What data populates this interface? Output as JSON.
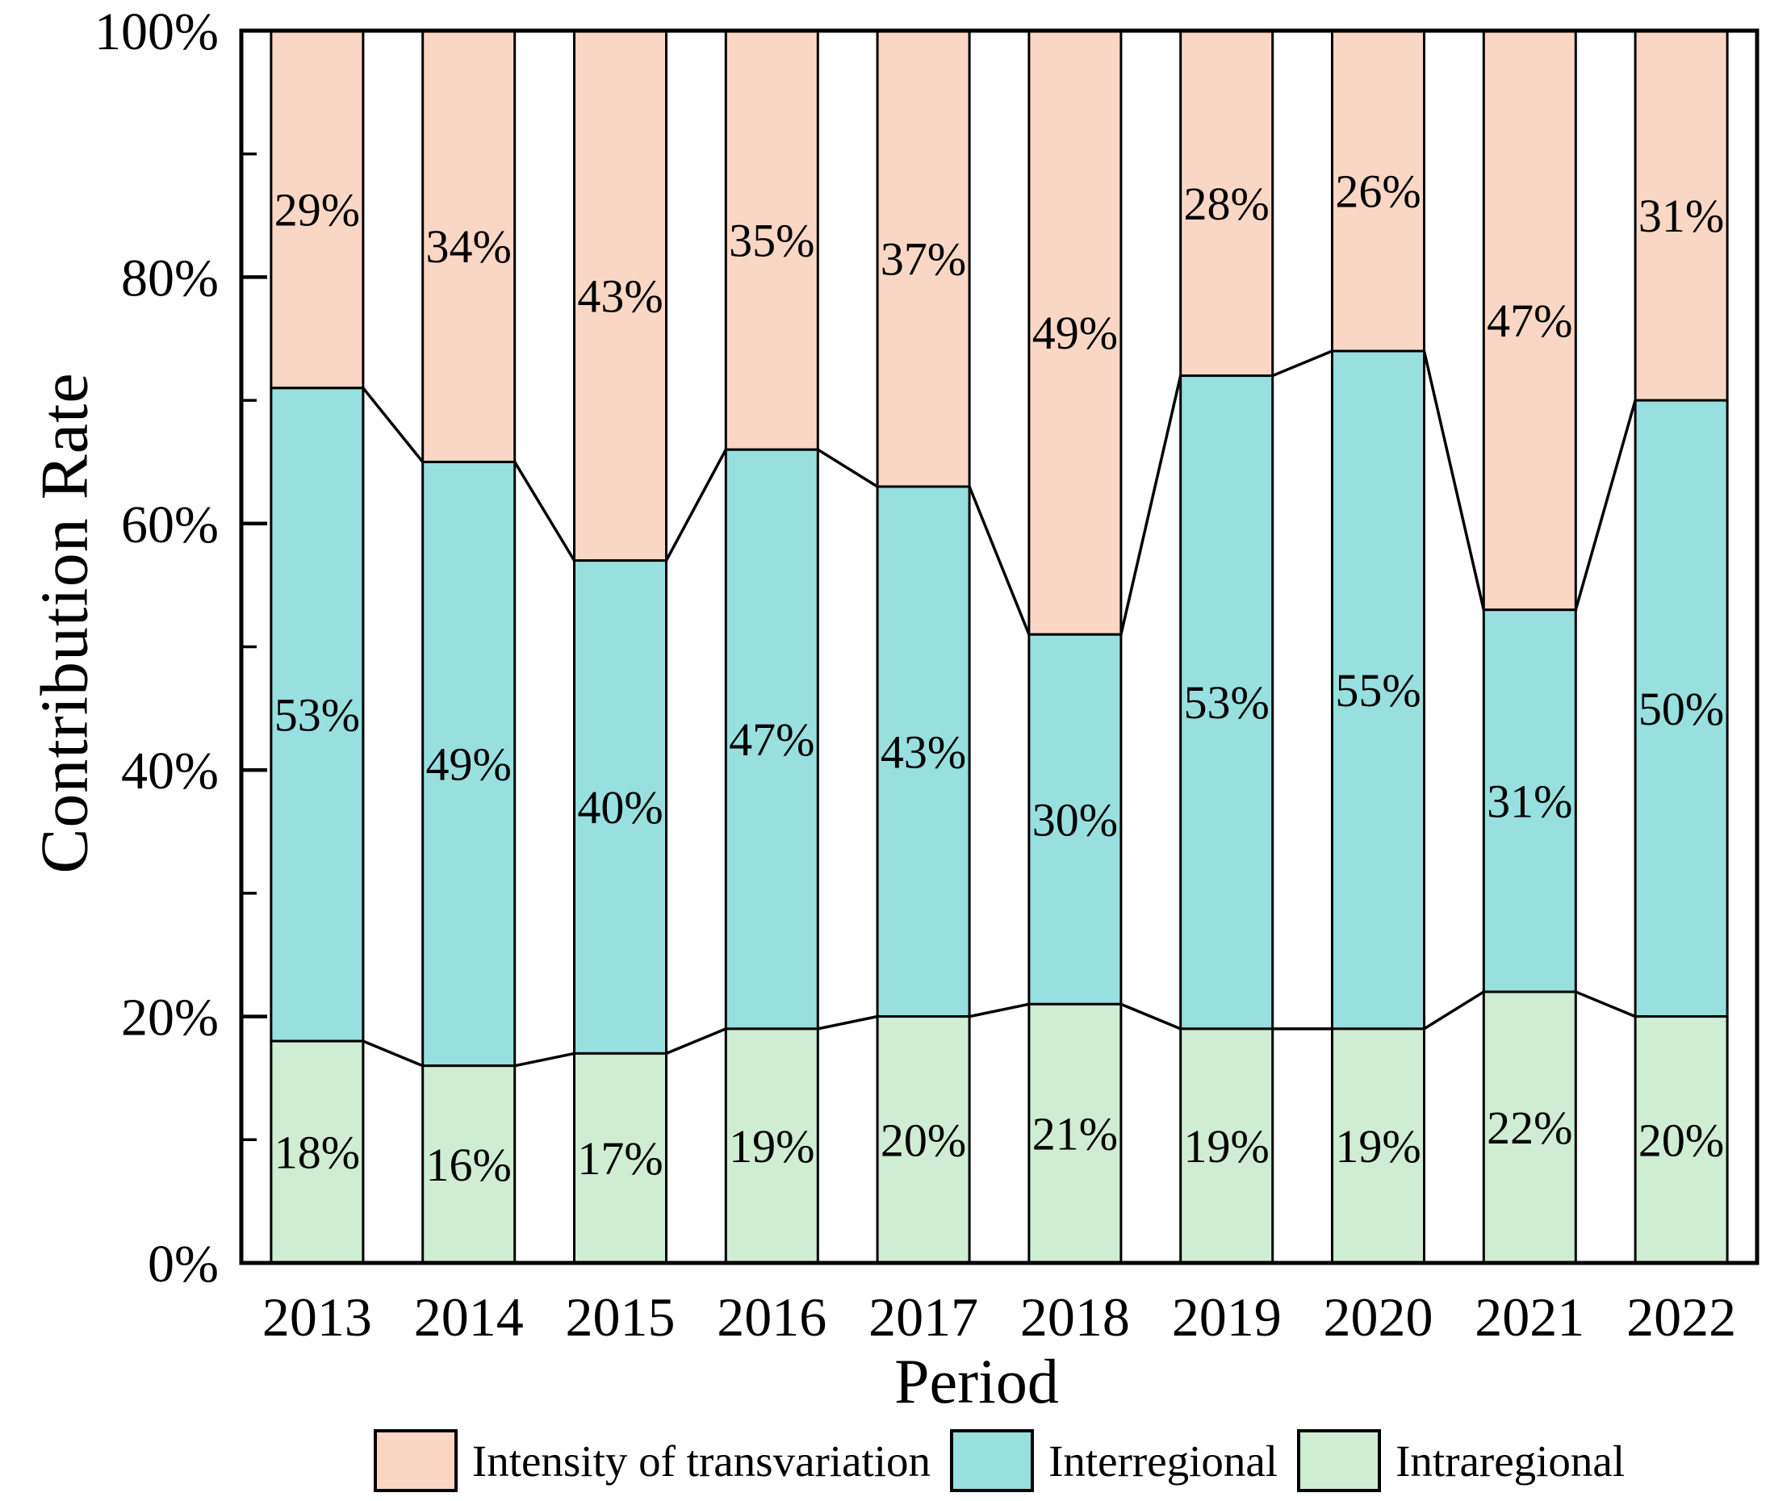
{
  "figure": {
    "y_axis_title": "Contribution Rate",
    "x_axis_title": "Period"
  },
  "chart_data": {
    "type": "bar",
    "stacked": true,
    "title": "",
    "xlabel": "Period",
    "ylabel": "Contribution Rate",
    "categories": [
      "2013",
      "2014",
      "2015",
      "2016",
      "2017",
      "2018",
      "2019",
      "2020",
      "2021",
      "2022"
    ],
    "series": [
      {
        "name": "Intraregional",
        "color": "#CEEDD3",
        "values": [
          18,
          16,
          17,
          19,
          20,
          21,
          19,
          19,
          22,
          20
        ]
      },
      {
        "name": "Interregional",
        "color": "#97E0DF",
        "values": [
          53,
          49,
          40,
          47,
          43,
          30,
          53,
          55,
          31,
          50
        ]
      },
      {
        "name": "Intensity of transvariation",
        "color": "#FAD7C4",
        "values": [
          29,
          34,
          43,
          35,
          37,
          49,
          28,
          26,
          47,
          31
        ]
      }
    ],
    "value_label_suffix": "%",
    "ylim": [
      0,
      100
    ],
    "y_major_ticks": [
      0,
      20,
      40,
      60,
      80,
      100
    ],
    "y_major_tick_labels": [
      "0%",
      "20%",
      "40%",
      "60%",
      "80%",
      "100%"
    ],
    "y_minor_ticks": [
      10,
      30,
      50,
      70,
      90
    ],
    "grid": false,
    "legend_position": "bottom",
    "segment_connectors": true,
    "bar_outline_color": "#000000",
    "background_color": "#FFFFFF"
  },
  "legend": {
    "items": [
      {
        "label": "Intensity of transvariation",
        "swatch_color": "#FAD7C4"
      },
      {
        "label": "Interregional",
        "swatch_color": "#97E0DF"
      },
      {
        "label": "Intraregional",
        "swatch_color": "#CEEDD3"
      }
    ]
  }
}
